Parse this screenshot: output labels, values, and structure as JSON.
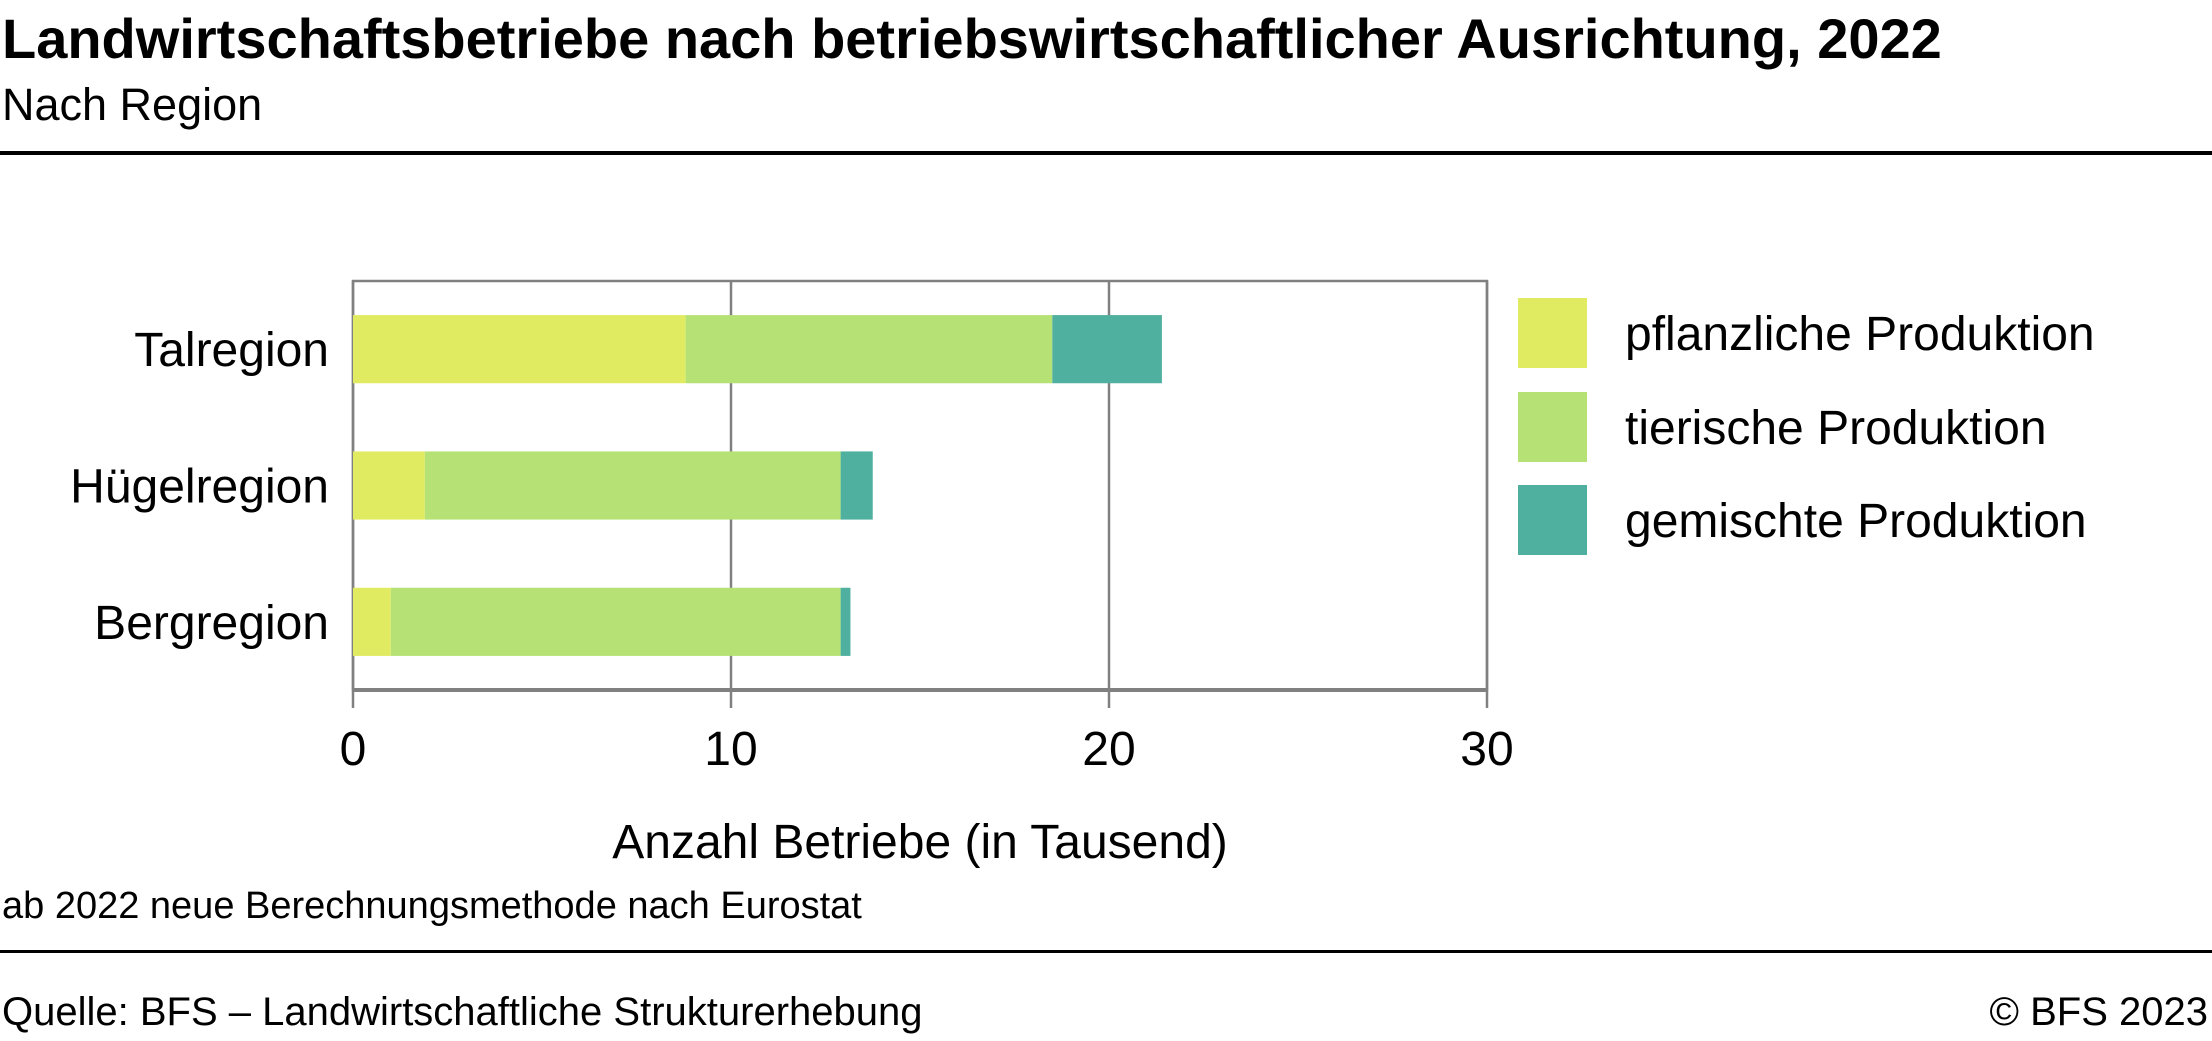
{
  "header": {
    "title": "Landwirtschaftsbetriebe nach betriebswirtschaftlicher Ausrichtung, 2022",
    "subtitle": "Nach Region"
  },
  "chart_data": {
    "type": "bar",
    "orientation": "horizontal",
    "stacked": true,
    "categories": [
      "Talregion",
      "Hügelregion",
      "Bergregion"
    ],
    "series": [
      {
        "name": "pflanzliche Produktion",
        "color": "#e1eb62",
        "values": [
          8.8,
          1.9,
          1.0
        ]
      },
      {
        "name": "tierische Produktion",
        "color": "#b6e174",
        "values": [
          9.7,
          11.0,
          11.9
        ]
      },
      {
        "name": "gemischte Produktion",
        "color": "#50b09f",
        "values": [
          2.9,
          0.85,
          0.26
        ]
      }
    ],
    "xlabel": "Anzahl Betriebe (in Tausend)",
    "xlim": [
      0,
      30
    ],
    "xticks": [
      "0",
      "10",
      "20",
      "30"
    ],
    "grid": true,
    "legend_position": "right"
  },
  "footer": {
    "note": "ab 2022 neue Berechnungsmethode nach Eurostat",
    "source": "Quelle: BFS – Landwirtschaftliche Strukturerhebung",
    "copyright": "© BFS 2023"
  },
  "colors": {
    "axis": "#808080",
    "rule": "#000000"
  }
}
